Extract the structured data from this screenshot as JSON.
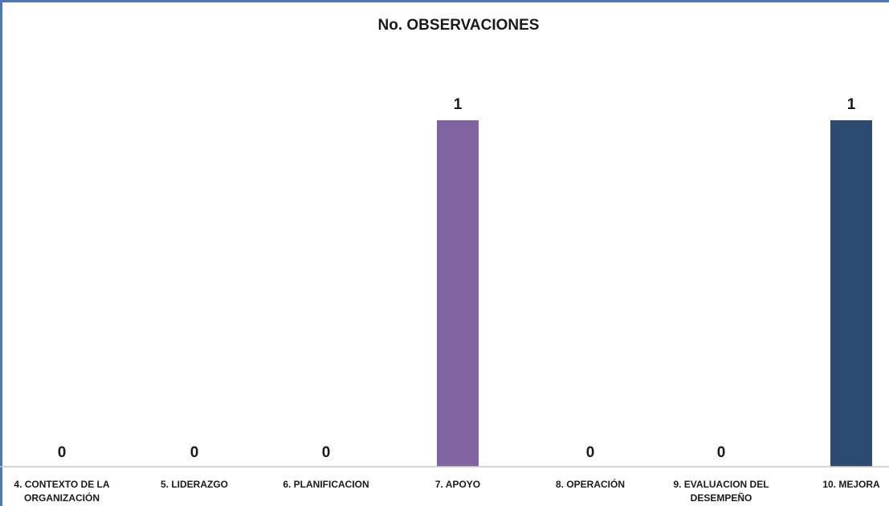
{
  "colors": {
    "frame": "#4a78c0",
    "axis": "#c8c8c8",
    "bar_default": "#2e4a73"
  },
  "chart_data": {
    "type": "bar",
    "title": "No. OBSERVACIONES",
    "xlabel": "",
    "ylabel": "",
    "ylim": [
      0,
      1.2
    ],
    "grid": false,
    "legend": "none",
    "categories": [
      [
        "4. CONTEXTO DE LA",
        "ORGANIZACIÓN"
      ],
      [
        "5. LIDERAZGO"
      ],
      [
        "6. PLANIFICACION"
      ],
      [
        "7. APOYO"
      ],
      [
        "8. OPERACIÓN"
      ],
      [
        "9. EVALUACION DEL",
        "DESEMPEÑO"
      ],
      [
        "10. MEJORA"
      ]
    ],
    "values": [
      0,
      0,
      0,
      1,
      0,
      0,
      1
    ],
    "data_labels": [
      "0",
      "0",
      "0",
      "1",
      "0",
      "0",
      "1"
    ],
    "bar_colors": [
      "#2e4a73",
      "#2e4a73",
      "#2e4a73",
      "#8064a2",
      "#2e4a73",
      "#2e4a73",
      "#2c4b70"
    ]
  }
}
